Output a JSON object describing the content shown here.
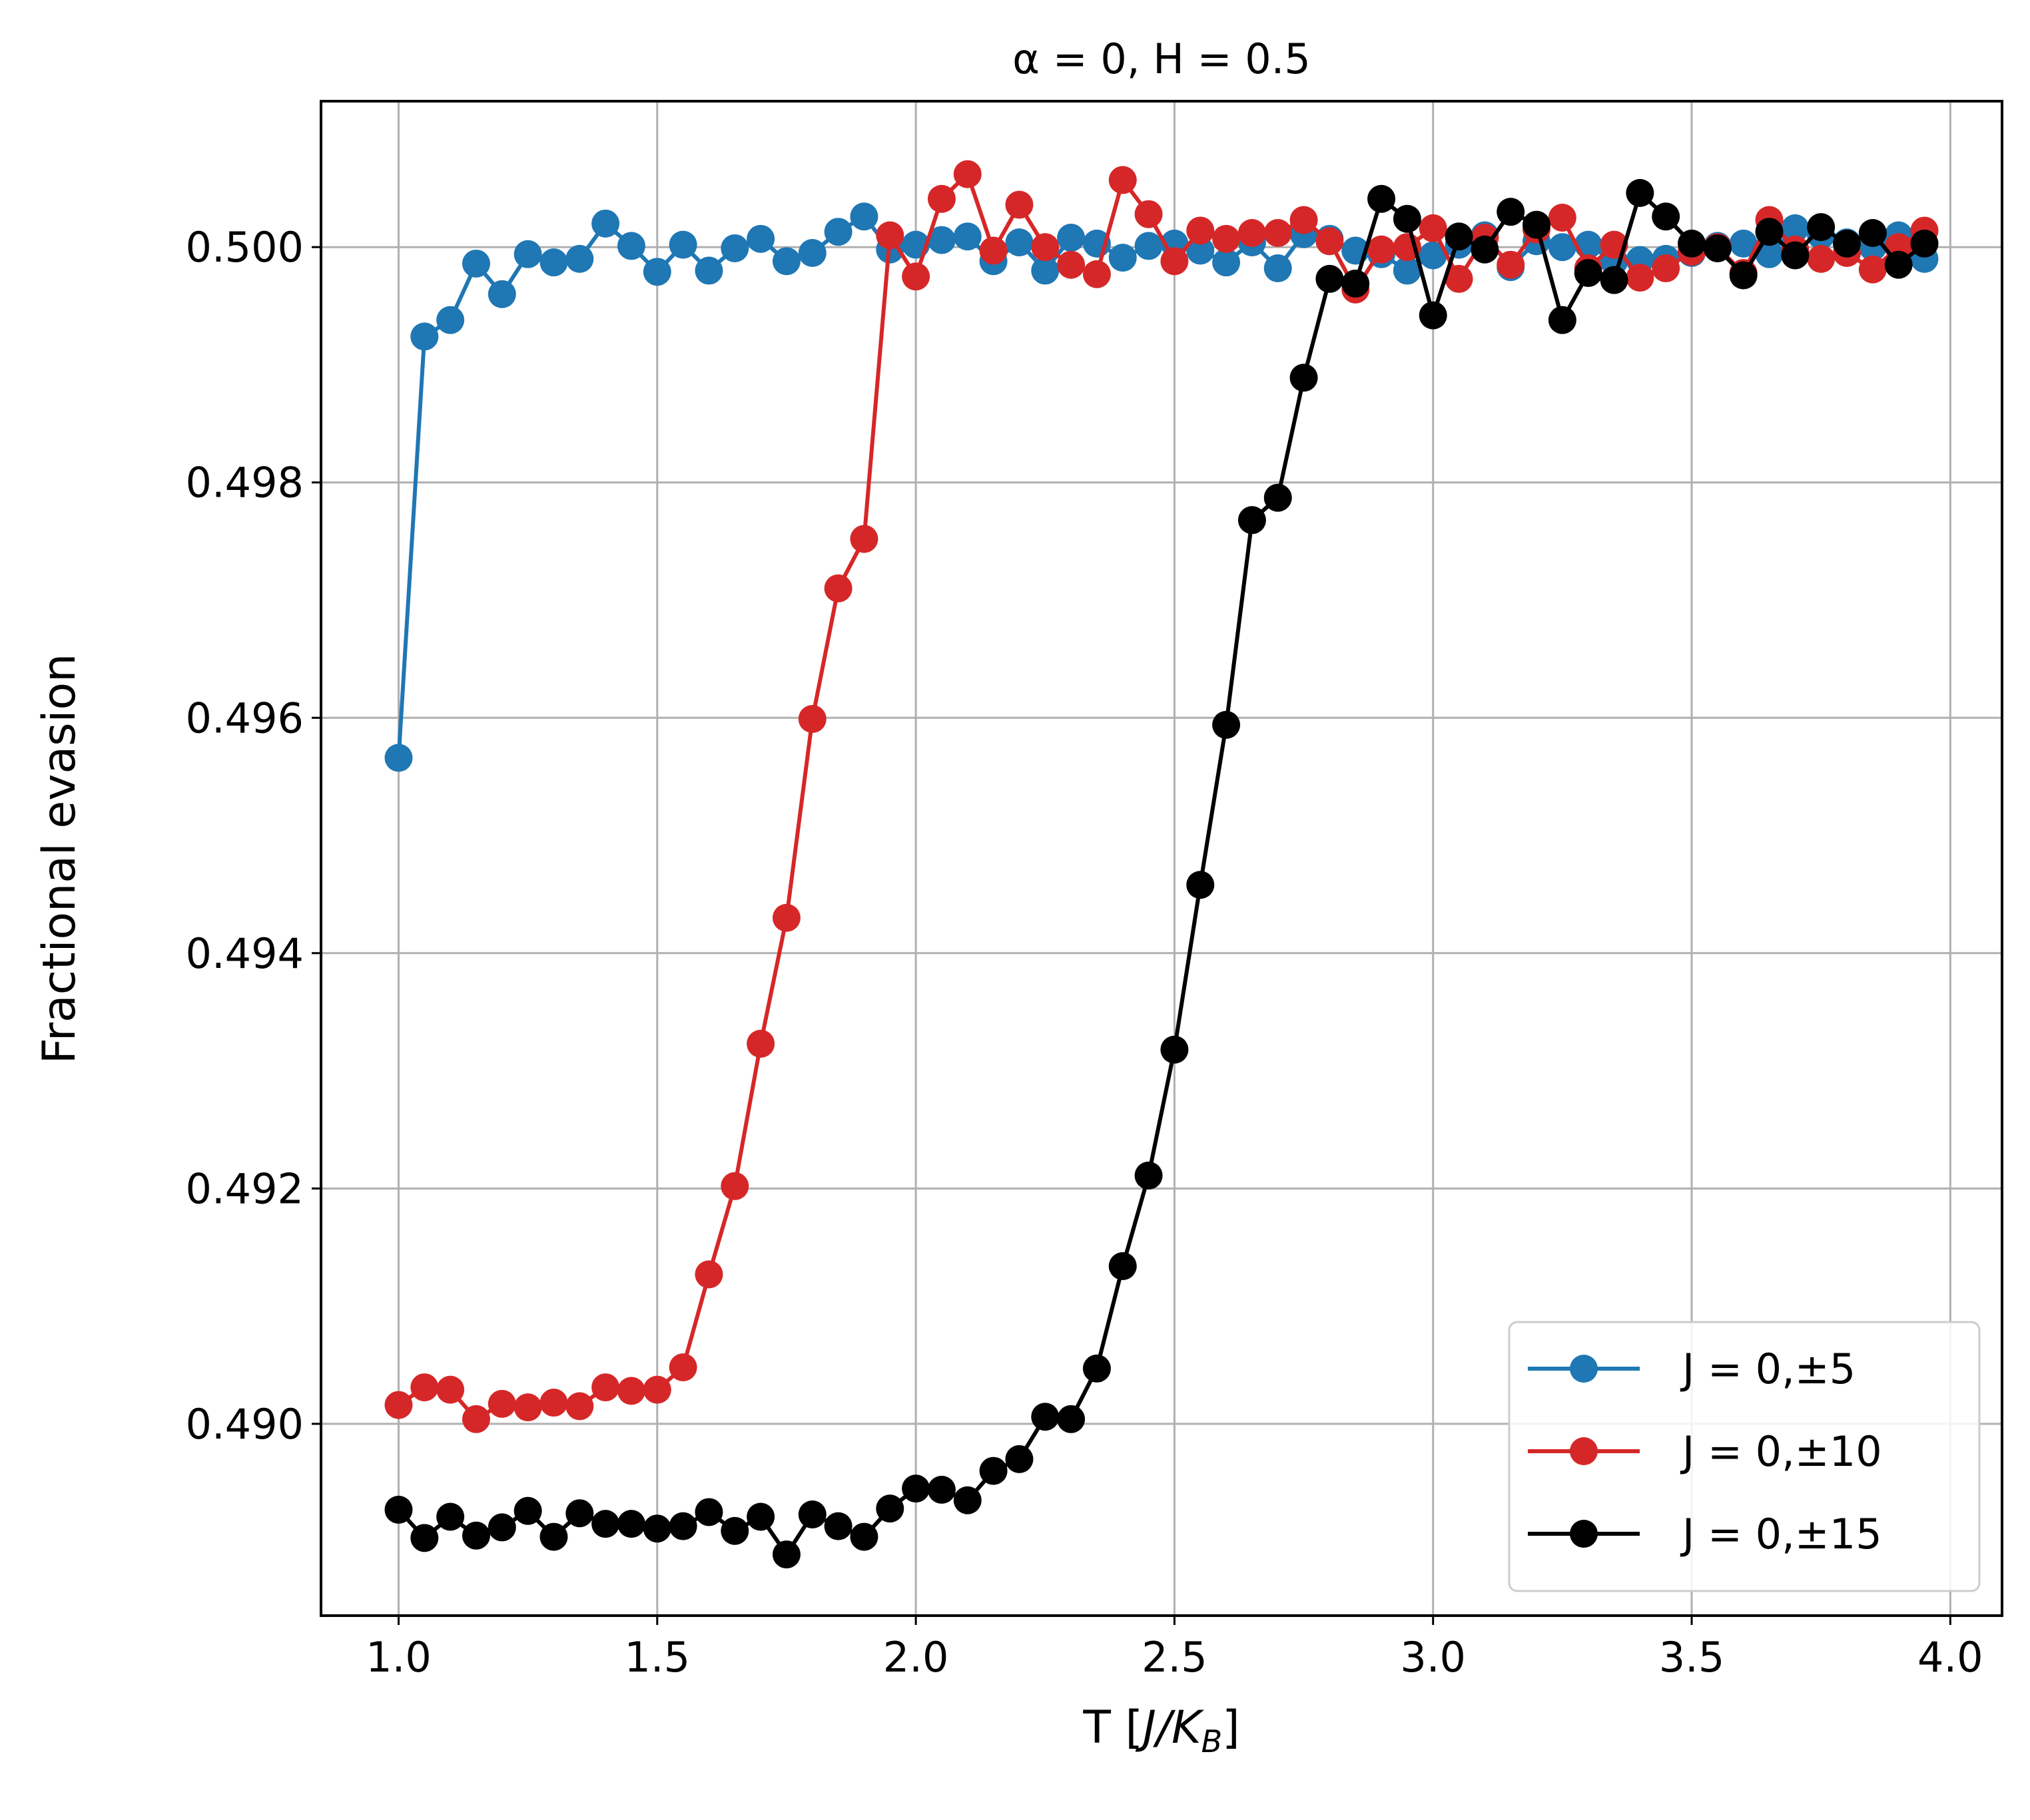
{
  "chart_data": {
    "type": "line",
    "title": "α = 0, H = 0.5",
    "xlabel": "T [J/K_B]",
    "xlabel_parts": {
      "main": "T [",
      "j": "J",
      "slash": "/K",
      "sub": "B",
      "close": "]"
    },
    "ylabel": "Fractional evasion",
    "xlim": [
      0.85,
      4.1
    ],
    "ylim": [
      0.48837,
      0.50124
    ],
    "xticks": [
      1.0,
      1.5,
      2.0,
      2.5,
      3.0,
      3.5,
      4.0
    ],
    "xtick_labels": [
      "1.0",
      "1.5",
      "2.0",
      "2.5",
      "3.0",
      "3.5",
      "4.0"
    ],
    "yticks": [
      0.49,
      0.492,
      0.494,
      0.496,
      0.498,
      0.5
    ],
    "ytick_labels": [
      "0.490",
      "0.492",
      "0.494",
      "0.496",
      "0.498",
      "0.500"
    ],
    "grid": true,
    "legend_position": "lower-right",
    "x": [
      1.0,
      1.05,
      1.1,
      1.15,
      1.2,
      1.25,
      1.3,
      1.35,
      1.4,
      1.45,
      1.5,
      1.55,
      1.6,
      1.65,
      1.7,
      1.75,
      1.8,
      1.85,
      1.9,
      1.95,
      2.0,
      2.05,
      2.1,
      2.15,
      2.2,
      2.25,
      2.3,
      2.35,
      2.4,
      2.45,
      2.5,
      2.55,
      2.6,
      2.65,
      2.7,
      2.75,
      2.8,
      2.85,
      2.9,
      2.95,
      3.0,
      3.05,
      3.1,
      3.15,
      3.2,
      3.25,
      3.3,
      3.35,
      3.4,
      3.45,
      3.5,
      3.55,
      3.6,
      3.65,
      3.7,
      3.75,
      3.8,
      3.85,
      3.9,
      3.95
    ],
    "series": [
      {
        "name": "J = 0,±5",
        "color": "#1f77b4",
        "values": [
          0.49566,
          0.49924,
          0.49938,
          0.49986,
          0.4996,
          0.49994,
          0.49987,
          0.4999,
          0.5002,
          0.50001,
          0.49979,
          0.50002,
          0.4998,
          0.49999,
          0.50007,
          0.49988,
          0.49995,
          0.50013,
          0.50026,
          0.49998,
          0.50002,
          0.50006,
          0.50009,
          0.49988,
          0.50004,
          0.4998,
          0.50008,
          0.50003,
          0.49991,
          0.50001,
          0.50003,
          0.49997,
          0.49987,
          0.50004,
          0.49982,
          0.50011,
          0.50007,
          0.49997,
          0.49994,
          0.4998,
          0.49993,
          0.50002,
          0.5001,
          0.49983,
          0.50005,
          0.5,
          0.50002,
          0.49988,
          0.49989,
          0.4999,
          0.49995,
          0.50001,
          0.50003,
          0.49994,
          0.50016,
          0.5001,
          0.50004,
          0.5,
          0.5001,
          0.4999
        ]
      },
      {
        "name": "J = 0,±10",
        "color": "#d62728",
        "values": [
          0.49016,
          0.49031,
          0.49029,
          0.49004,
          0.49017,
          0.49014,
          0.49018,
          0.49015,
          0.49031,
          0.49028,
          0.49029,
          0.49048,
          0.49127,
          0.49202,
          0.49323,
          0.4943,
          0.49599,
          0.4971,
          0.49752,
          0.5001,
          0.49975,
          0.50041,
          0.50062,
          0.49997,
          0.50036,
          0.5,
          0.49985,
          0.49977,
          0.50057,
          0.50028,
          0.49988,
          0.50014,
          0.50007,
          0.50012,
          0.50012,
          0.50023,
          0.50005,
          0.49964,
          0.49998,
          0.5,
          0.50016,
          0.49973,
          0.50008,
          0.49985,
          0.50015,
          0.50025,
          0.49982,
          0.50002,
          0.49974,
          0.49982,
          0.49996,
          0.5,
          0.49978,
          0.50023,
          0.49998,
          0.4999,
          0.49995,
          0.49981,
          0.5,
          0.50014
        ]
      },
      {
        "name": "J = 0,±15",
        "color": "#000000",
        "values": [
          0.48927,
          0.48903,
          0.48921,
          0.48905,
          0.48912,
          0.48926,
          0.48904,
          0.48924,
          0.48915,
          0.48915,
          0.48911,
          0.48913,
          0.48925,
          0.48909,
          0.48921,
          0.48889,
          0.48923,
          0.48913,
          0.48904,
          0.48928,
          0.48945,
          0.48944,
          0.48935,
          0.4896,
          0.4897,
          0.49006,
          0.49004,
          0.49047,
          0.49134,
          0.49211,
          0.49318,
          0.49458,
          0.49594,
          0.49768,
          0.49787,
          0.49889,
          0.49973,
          0.49969,
          0.50041,
          0.50024,
          0.49942,
          0.50009,
          0.49998,
          0.5003,
          0.50019,
          0.49938,
          0.49978,
          0.49972,
          0.50046,
          0.50026,
          0.50003,
          0.49999,
          0.49976,
          0.50013,
          0.49993,
          0.50017,
          0.50003,
          0.50012,
          0.49985,
          0.50003
        ]
      }
    ]
  }
}
